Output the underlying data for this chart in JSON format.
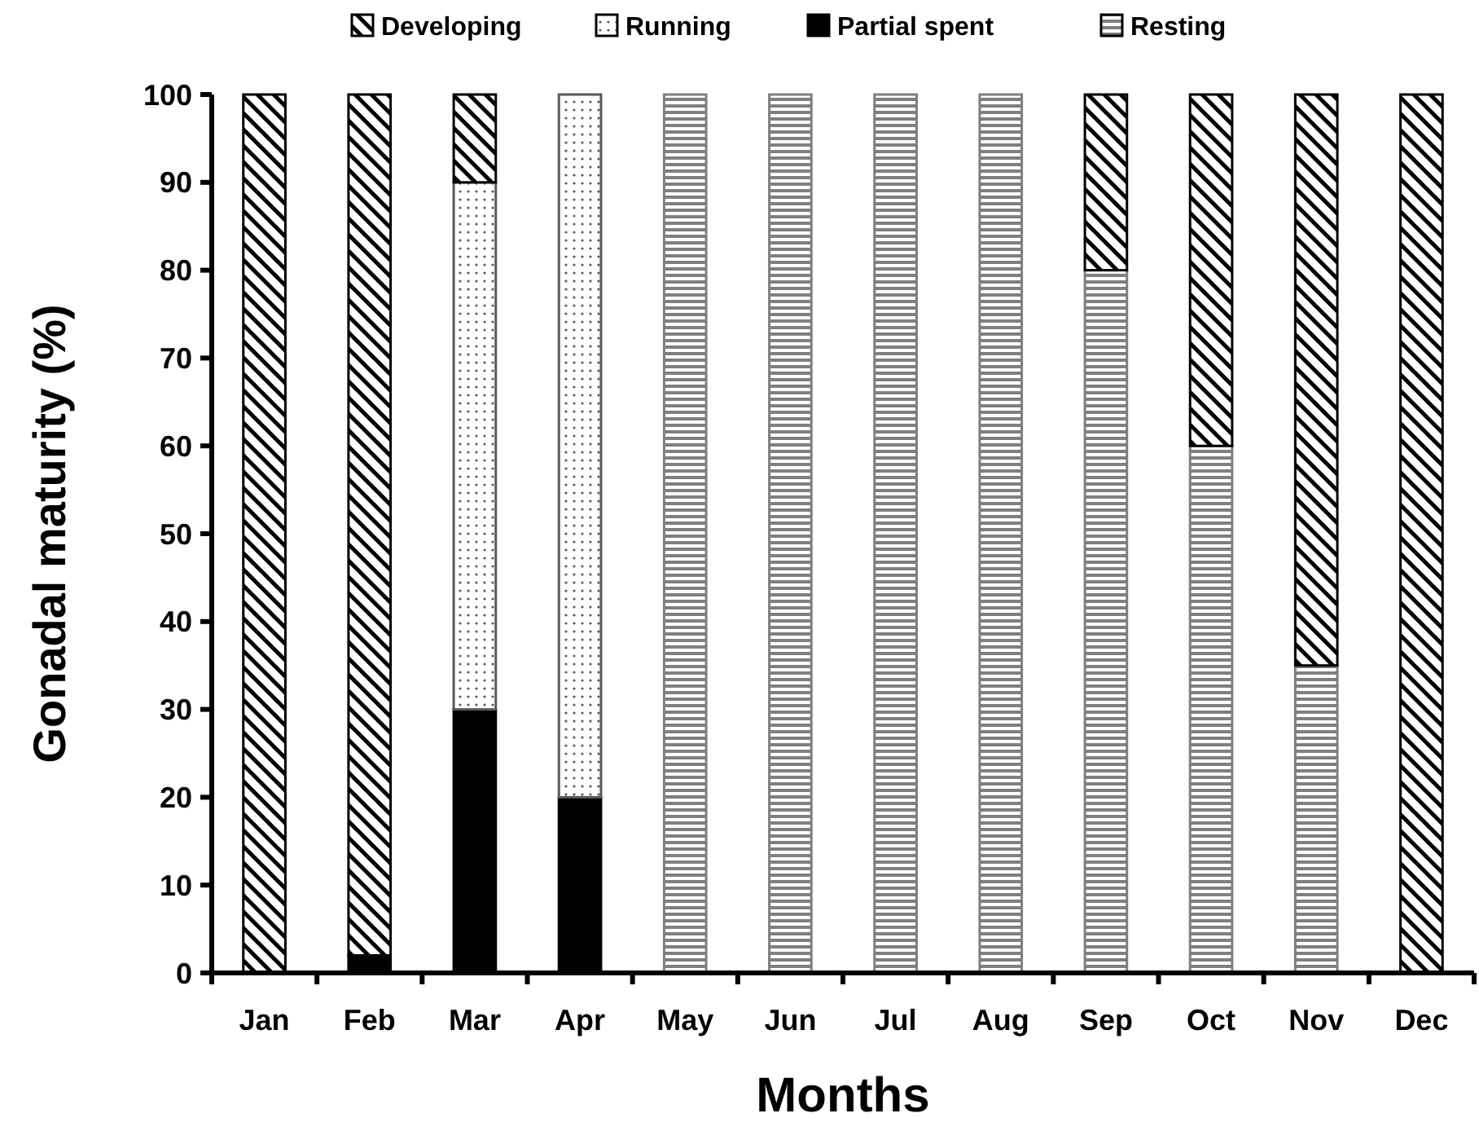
{
  "chart_data": {
    "type": "bar",
    "stacked": true,
    "xlabel": "Months",
    "ylabel": "Gonadal maturity (%)",
    "categories": [
      "Jan",
      "Feb",
      "Mar",
      "Apr",
      "May",
      "Jun",
      "Jul",
      "Aug",
      "Sep",
      "Oct",
      "Nov",
      "Dec"
    ],
    "series": [
      {
        "name": "Resting",
        "color": "#7f7f7f",
        "values": [
          0,
          0,
          0,
          0,
          100,
          100,
          100,
          100,
          80,
          60,
          35,
          0
        ]
      },
      {
        "name": "Partial spent",
        "color": "#000000",
        "values": [
          0,
          2,
          30,
          20,
          0,
          0,
          0,
          0,
          0,
          0,
          0,
          0
        ]
      },
      {
        "name": "Running",
        "color": "#595959",
        "values": [
          0,
          0,
          60,
          80,
          0,
          0,
          0,
          0,
          0,
          0,
          0,
          0
        ]
      },
      {
        "name": "Developing",
        "color": "#000000",
        "values": [
          100,
          98,
          10,
          0,
          0,
          0,
          0,
          0,
          20,
          40,
          65,
          100
        ]
      }
    ],
    "ylim": [
      0,
      100
    ],
    "yticks": [
      0,
      10,
      20,
      30,
      40,
      50,
      60,
      70,
      80,
      90,
      100
    ],
    "grid": false,
    "legend": "top"
  }
}
